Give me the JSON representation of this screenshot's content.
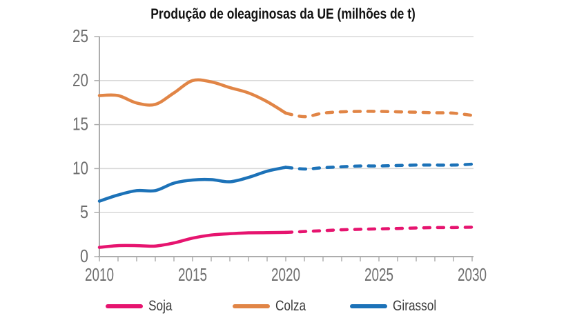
{
  "chart_data": {
    "type": "line",
    "title": "Produção de oleaginosas da UE (milhões de t)",
    "years": [
      2010,
      2011,
      2012,
      2013,
      2014,
      2015,
      2016,
      2017,
      2018,
      2019,
      2020,
      2021,
      2022,
      2023,
      2024,
      2025,
      2026,
      2027,
      2028,
      2029,
      2030
    ],
    "series": [
      {
        "name": "Soja",
        "color": "#E6146F",
        "projection_from_index": 10,
        "values": [
          1.05,
          1.25,
          1.25,
          1.2,
          1.55,
          2.1,
          2.45,
          2.6,
          2.7,
          2.72,
          2.75,
          2.85,
          2.95,
          3.05,
          3.1,
          3.15,
          3.2,
          3.25,
          3.3,
          3.3,
          3.35
        ]
      },
      {
        "name": "Colza",
        "color": "#E18546",
        "projection_from_index": 10,
        "values": [
          18.3,
          18.3,
          17.45,
          17.3,
          18.6,
          20.0,
          19.85,
          19.2,
          18.6,
          17.6,
          16.3,
          15.9,
          16.3,
          16.45,
          16.5,
          16.5,
          16.45,
          16.4,
          16.35,
          16.3,
          16.05
        ]
      },
      {
        "name": "Girassol",
        "color": "#1C72B8",
        "projection_from_index": 10,
        "values": [
          6.3,
          7.0,
          7.5,
          7.5,
          8.35,
          8.7,
          8.75,
          8.5,
          9.0,
          9.7,
          10.15,
          9.95,
          10.1,
          10.2,
          10.3,
          10.3,
          10.35,
          10.4,
          10.4,
          10.4,
          10.5
        ]
      }
    ],
    "ylim": [
      0,
      25
    ],
    "yticks": [
      0,
      5,
      10,
      15,
      20,
      25
    ],
    "xticks_labeled": [
      2010,
      2015,
      2020,
      2025,
      2030
    ],
    "xticks_minor_every_years": 1,
    "grid": "horizontal",
    "legend_position": "bottom",
    "colors": {
      "grid": "#D8D8D8",
      "axis": "#ADADAD",
      "tick_label": "#6E6E6E",
      "title": "#111111",
      "legend_text": "#3A3A3A"
    }
  }
}
